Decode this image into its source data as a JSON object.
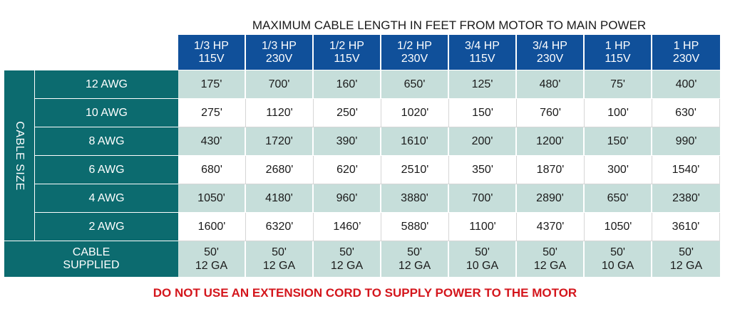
{
  "title": "MAXIMUM CABLE LENGTH IN FEET FROM MOTOR TO MAIN POWER",
  "side_label": "CABLE SIZE",
  "columns": [
    {
      "hp": "1/3 HP",
      "volt": "115V"
    },
    {
      "hp": "1/3 HP",
      "volt": "230V"
    },
    {
      "hp": "1/2 HP",
      "volt": "115V"
    },
    {
      "hp": "1/2 HP",
      "volt": "230V"
    },
    {
      "hp": "3/4 HP",
      "volt": "115V"
    },
    {
      "hp": "3/4 HP",
      "volt": "230V"
    },
    {
      "hp": "1 HP",
      "volt": "115V"
    },
    {
      "hp": "1 HP",
      "volt": "230V"
    }
  ],
  "rows": [
    {
      "label": "12 AWG",
      "values": [
        "175'",
        "700'",
        "160'",
        "650'",
        "125'",
        "480'",
        "75'",
        "400'"
      ]
    },
    {
      "label": "10 AWG",
      "values": [
        "275'",
        "1120'",
        "250'",
        "1020'",
        "150'",
        "760'",
        "100'",
        "630'"
      ]
    },
    {
      "label": "8 AWG",
      "values": [
        "430'",
        "1720'",
        "390'",
        "1610'",
        "200'",
        "1200'",
        "150'",
        "990'"
      ]
    },
    {
      "label": "6 AWG",
      "values": [
        "680'",
        "2680'",
        "620'",
        "2510'",
        "350'",
        "1870'",
        "300'",
        "1540'"
      ]
    },
    {
      "label": "4 AWG",
      "values": [
        "1050'",
        "4180'",
        "960'",
        "3880'",
        "700'",
        "2890'",
        "650'",
        "2380'"
      ]
    },
    {
      "label": "2 AWG",
      "values": [
        "1600'",
        "6320'",
        "1460’",
        "5880'",
        "1100'",
        "4370'",
        "1050'",
        "3610'"
      ]
    }
  ],
  "supplied": {
    "label_line1": "CABLE",
    "label_line2": "SUPPLIED",
    "values": [
      {
        "length": "50'",
        "gauge": "12 GA"
      },
      {
        "length": "50'",
        "gauge": "12 GA"
      },
      {
        "length": "50'",
        "gauge": "12 GA"
      },
      {
        "length": "50'",
        "gauge": "12 GA"
      },
      {
        "length": "50'",
        "gauge": "10 GA"
      },
      {
        "length": "50'",
        "gauge": "12 GA"
      },
      {
        "length": "50'",
        "gauge": "10 GA"
      },
      {
        "length": "50'",
        "gauge": "12 GA"
      }
    ]
  },
  "warning": "DO NOT USE AN EXTENSION CORD TO SUPPLY POWER TO THE MOTOR",
  "colors": {
    "header_blue": "#10509a",
    "label_teal": "#0c6b6f",
    "row_shade": "#c6deda",
    "warning_red": "#d4161c"
  }
}
